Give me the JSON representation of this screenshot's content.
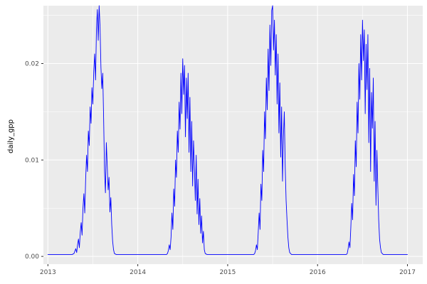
{
  "chart_data": {
    "type": "line",
    "title": "",
    "xlabel": "",
    "ylabel": "daily_gpp",
    "legend": "none",
    "panel_bg": "#EBEBEB",
    "grid_color": "#FFFFFF",
    "tick_color": "#333333",
    "tick_label_color": "#4D4D4D",
    "line_color": "#0000FF",
    "xlim": [
      2012.95,
      2017.17
    ],
    "ylim": [
      -0.0008,
      0.026
    ],
    "xticks": {
      "major": [
        {
          "value": 2013,
          "label": "2013"
        },
        {
          "value": 2014,
          "label": "2014"
        },
        {
          "value": 2015,
          "label": "2015"
        },
        {
          "value": 2016,
          "label": "2016"
        },
        {
          "value": 2017,
          "label": "2017"
        }
      ],
      "minor": [
        2013.5,
        2014.5,
        2015.5,
        2016.5
      ]
    },
    "yticks": {
      "major": [
        {
          "value": 0.0,
          "label": "0.00"
        },
        {
          "value": 0.01,
          "label": "0.01"
        },
        {
          "value": 0.02,
          "label": "0.02"
        }
      ],
      "minor": [
        0.005,
        0.015,
        0.025
      ]
    },
    "series": [
      {
        "name": "daily_gpp",
        "points": [
          [
            2013.0,
            0.0002
          ],
          [
            2013.08,
            0.0002
          ],
          [
            2013.16,
            0.0002
          ],
          [
            2013.24,
            0.0002
          ],
          [
            2013.27,
            0.0002
          ],
          [
            2013.29,
            0.0003
          ],
          [
            2013.31,
            0.0008
          ],
          [
            2013.32,
            0.0004
          ],
          [
            2013.33,
            0.0012
          ],
          [
            2013.34,
            0.0018
          ],
          [
            2013.35,
            0.0009
          ],
          [
            2013.36,
            0.0025
          ],
          [
            2013.37,
            0.0035
          ],
          [
            2013.38,
            0.0022
          ],
          [
            2013.39,
            0.005
          ],
          [
            2013.4,
            0.0065
          ],
          [
            2013.41,
            0.0045
          ],
          [
            2013.42,
            0.008
          ],
          [
            2013.43,
            0.0105
          ],
          [
            2013.44,
            0.0088
          ],
          [
            2013.45,
            0.013
          ],
          [
            2013.46,
            0.0115
          ],
          [
            2013.47,
            0.0155
          ],
          [
            2013.48,
            0.0138
          ],
          [
            2013.49,
            0.0175
          ],
          [
            2013.5,
            0.0158
          ],
          [
            2013.51,
            0.0192
          ],
          [
            2013.52,
            0.021
          ],
          [
            2013.53,
            0.0183
          ],
          [
            2013.54,
            0.0235
          ],
          [
            2013.55,
            0.0256
          ],
          [
            2013.56,
            0.0224
          ],
          [
            2013.57,
            0.026
          ],
          [
            2013.58,
            0.0238
          ],
          [
            2013.59,
            0.0196
          ],
          [
            2013.6,
            0.0174
          ],
          [
            2013.61,
            0.019
          ],
          [
            2013.62,
            0.0143
          ],
          [
            2013.63,
            0.0088
          ],
          [
            2013.64,
            0.0066
          ],
          [
            2013.65,
            0.0118
          ],
          [
            2013.66,
            0.0094
          ],
          [
            2013.67,
            0.0069
          ],
          [
            2013.68,
            0.0082
          ],
          [
            2013.69,
            0.0046
          ],
          [
            2013.7,
            0.0061
          ],
          [
            2013.71,
            0.0033
          ],
          [
            2013.72,
            0.0016
          ],
          [
            2013.73,
            0.0007
          ],
          [
            2013.74,
            0.0003
          ],
          [
            2013.76,
            0.0002
          ],
          [
            2013.82,
            0.0002
          ],
          [
            2013.9,
            0.0002
          ],
          [
            2013.98,
            0.0002
          ],
          [
            2014.06,
            0.0002
          ],
          [
            2014.14,
            0.0002
          ],
          [
            2014.22,
            0.0002
          ],
          [
            2014.3,
            0.0002
          ],
          [
            2014.32,
            0.0002
          ],
          [
            2014.33,
            0.0003
          ],
          [
            2014.34,
            0.0006
          ],
          [
            2014.35,
            0.0012
          ],
          [
            2014.36,
            0.0007
          ],
          [
            2014.37,
            0.002
          ],
          [
            2014.38,
            0.0045
          ],
          [
            2014.39,
            0.0028
          ],
          [
            2014.4,
            0.007
          ],
          [
            2014.41,
            0.0052
          ],
          [
            2014.42,
            0.01
          ],
          [
            2014.43,
            0.0082
          ],
          [
            2014.44,
            0.013
          ],
          [
            2014.45,
            0.0108
          ],
          [
            2014.46,
            0.016
          ],
          [
            2014.47,
            0.0132
          ],
          [
            2014.48,
            0.019
          ],
          [
            2014.49,
            0.0148
          ],
          [
            2014.5,
            0.0205
          ],
          [
            2014.51,
            0.0168
          ],
          [
            2014.52,
            0.0198
          ],
          [
            2014.53,
            0.0124
          ],
          [
            2014.54,
            0.0185
          ],
          [
            2014.55,
            0.0143
          ],
          [
            2014.56,
            0.019
          ],
          [
            2014.57,
            0.0108
          ],
          [
            2014.58,
            0.0165
          ],
          [
            2014.59,
            0.0088
          ],
          [
            2014.6,
            0.014
          ],
          [
            2014.61,
            0.0073
          ],
          [
            2014.62,
            0.012
          ],
          [
            2014.63,
            0.0093
          ],
          [
            2014.64,
            0.0058
          ],
          [
            2014.65,
            0.0105
          ],
          [
            2014.66,
            0.0044
          ],
          [
            2014.67,
            0.008
          ],
          [
            2014.68,
            0.0033
          ],
          [
            2014.69,
            0.006
          ],
          [
            2014.7,
            0.0024
          ],
          [
            2014.71,
            0.0042
          ],
          [
            2014.72,
            0.0014
          ],
          [
            2014.73,
            0.0026
          ],
          [
            2014.74,
            0.0007
          ],
          [
            2014.75,
            0.0003
          ],
          [
            2014.77,
            0.0002
          ],
          [
            2014.84,
            0.0002
          ],
          [
            2014.92,
            0.0002
          ],
          [
            2015.0,
            0.0002
          ],
          [
            2015.08,
            0.0002
          ],
          [
            2015.16,
            0.0002
          ],
          [
            2015.24,
            0.0002
          ],
          [
            2015.29,
            0.0002
          ],
          [
            2015.3,
            0.0003
          ],
          [
            2015.31,
            0.0006
          ],
          [
            2015.32,
            0.0012
          ],
          [
            2015.33,
            0.0007
          ],
          [
            2015.34,
            0.0025
          ],
          [
            2015.35,
            0.0045
          ],
          [
            2015.36,
            0.0028
          ],
          [
            2015.37,
            0.0075
          ],
          [
            2015.38,
            0.0058
          ],
          [
            2015.39,
            0.011
          ],
          [
            2015.4,
            0.0088
          ],
          [
            2015.41,
            0.015
          ],
          [
            2015.42,
            0.0122
          ],
          [
            2015.43,
            0.0185
          ],
          [
            2015.44,
            0.0152
          ],
          [
            2015.45,
            0.0215
          ],
          [
            2015.46,
            0.0172
          ],
          [
            2015.47,
            0.024
          ],
          [
            2015.48,
            0.0198
          ],
          [
            2015.49,
            0.0255
          ],
          [
            2015.5,
            0.026
          ],
          [
            2015.51,
            0.0214
          ],
          [
            2015.52,
            0.0245
          ],
          [
            2015.53,
            0.0188
          ],
          [
            2015.54,
            0.023
          ],
          [
            2015.55,
            0.0158
          ],
          [
            2015.56,
            0.021
          ],
          [
            2015.57,
            0.0128
          ],
          [
            2015.58,
            0.018
          ],
          [
            2015.59,
            0.0103
          ],
          [
            2015.6,
            0.0155
          ],
          [
            2015.61,
            0.0078
          ],
          [
            2015.62,
            0.0124
          ],
          [
            2015.63,
            0.015
          ],
          [
            2015.64,
            0.0093
          ],
          [
            2015.65,
            0.0058
          ],
          [
            2015.66,
            0.0038
          ],
          [
            2015.67,
            0.002
          ],
          [
            2015.68,
            0.0009
          ],
          [
            2015.69,
            0.0004
          ],
          [
            2015.71,
            0.0002
          ],
          [
            2015.78,
            0.0002
          ],
          [
            2015.86,
            0.0002
          ],
          [
            2015.94,
            0.0002
          ],
          [
            2016.02,
            0.0002
          ],
          [
            2016.1,
            0.0002
          ],
          [
            2016.18,
            0.0002
          ],
          [
            2016.26,
            0.0002
          ],
          [
            2016.32,
            0.0002
          ],
          [
            2016.33,
            0.0003
          ],
          [
            2016.34,
            0.0008
          ],
          [
            2016.35,
            0.0015
          ],
          [
            2016.36,
            0.0009
          ],
          [
            2016.37,
            0.003
          ],
          [
            2016.38,
            0.0055
          ],
          [
            2016.39,
            0.0038
          ],
          [
            2016.4,
            0.0085
          ],
          [
            2016.41,
            0.0063
          ],
          [
            2016.42,
            0.012
          ],
          [
            2016.43,
            0.0093
          ],
          [
            2016.44,
            0.016
          ],
          [
            2016.45,
            0.0128
          ],
          [
            2016.46,
            0.02
          ],
          [
            2016.47,
            0.0163
          ],
          [
            2016.48,
            0.023
          ],
          [
            2016.49,
            0.0183
          ],
          [
            2016.5,
            0.0245
          ],
          [
            2016.51,
            0.0203
          ],
          [
            2016.52,
            0.0235
          ],
          [
            2016.53,
            0.0148
          ],
          [
            2016.54,
            0.022
          ],
          [
            2016.55,
            0.0173
          ],
          [
            2016.56,
            0.023
          ],
          [
            2016.57,
            0.0118
          ],
          [
            2016.58,
            0.0195
          ],
          [
            2016.59,
            0.0088
          ],
          [
            2016.6,
            0.017
          ],
          [
            2016.61,
            0.0133
          ],
          [
            2016.62,
            0.0185
          ],
          [
            2016.63,
            0.0078
          ],
          [
            2016.64,
            0.014
          ],
          [
            2016.65,
            0.0053
          ],
          [
            2016.66,
            0.011
          ],
          [
            2016.67,
            0.0073
          ],
          [
            2016.68,
            0.0038
          ],
          [
            2016.69,
            0.0018
          ],
          [
            2016.7,
            0.0009
          ],
          [
            2016.71,
            0.0004
          ],
          [
            2016.73,
            0.0002
          ],
          [
            2016.8,
            0.0002
          ],
          [
            2016.88,
            0.0002
          ],
          [
            2016.96,
            0.0002
          ],
          [
            2017.0,
            0.0002
          ]
        ]
      }
    ]
  }
}
